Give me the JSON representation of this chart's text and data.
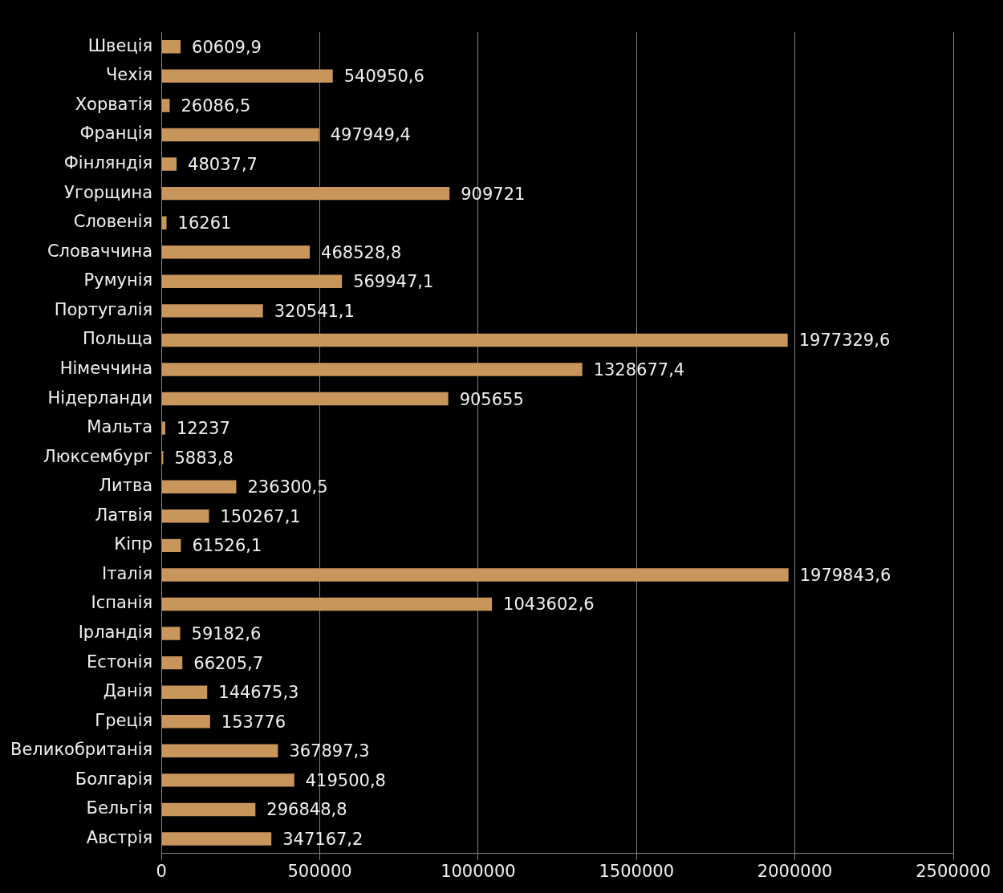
{
  "chart_data": {
    "type": "bar",
    "orientation": "horizontal",
    "categories": [
      "Швеція",
      "Чехія",
      "Хорватія",
      "Франція",
      "Фінляндія",
      "Угорщина",
      "Словенія",
      "Словаччина",
      "Румунія",
      "Португалія",
      "Польща",
      "Німеччина",
      "Нідерланди",
      "Мальта",
      "Люксембург",
      "Литва",
      "Латвія",
      "Кіпр",
      "Італія",
      "Іспанія",
      "Ірландія",
      "Естонія",
      "Данія",
      "Греція",
      "Великобританія",
      "Болгарія",
      "Бельгія",
      "Австрія"
    ],
    "values": [
      60609.9,
      540950.6,
      26086.5,
      497949.4,
      48037.7,
      909721,
      16261,
      468528.8,
      569947.1,
      320541.1,
      1977329.6,
      1328677.4,
      905655,
      12237,
      5883.8,
      236300.5,
      150267.1,
      61526.1,
      1979843.6,
      1043602.6,
      59182.6,
      66205.7,
      144675.3,
      153776,
      367897.3,
      419500.8,
      296848.8,
      347167.2
    ],
    "value_labels": [
      "60609,9",
      "540950,6",
      "26086,5",
      "497949,4",
      "48037,7",
      "909721",
      "16261",
      "468528,8",
      "569947,1",
      "320541,1",
      "1977329,6",
      "1328677,4",
      "905655",
      "12237",
      "5883,8",
      "236300,5",
      "150267,1",
      "61526,1",
      "1979843,6",
      "1043602,6",
      "59182,6",
      "66205,7",
      "144675,3",
      "153776",
      "367897,3",
      "419500,8",
      "296848,8",
      "347167,2"
    ],
    "color": "#c8955a",
    "xlim": [
      0,
      2500000
    ],
    "xticks": [
      0,
      500000,
      1000000,
      1500000,
      2000000,
      2500000
    ],
    "grid": "x",
    "legend": false
  }
}
